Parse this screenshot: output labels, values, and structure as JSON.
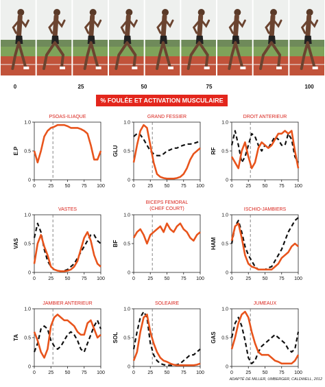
{
  "strip": {
    "ticks": [
      0,
      25,
      50,
      75,
      100
    ]
  },
  "banner": "% FOULÉE ET ACTIVATION MUSCULAIRE",
  "credit": "ADAPTÉ DE MILLER, UMBERGER, CALDWELL, 2012",
  "chart_data": [
    {
      "type": "line",
      "title": "PSOAS-ILIAQUE",
      "ylabel": "E.P",
      "xlim": [
        0,
        100
      ],
      "ylim": [
        0,
        1
      ],
      "xticks": [
        0,
        25,
        50,
        75,
        100
      ],
      "yticks": [
        0,
        0.5,
        {
          "value": 1,
          "label": "1.0"
        }
      ],
      "vline": 28,
      "x": [
        0,
        5,
        10,
        15,
        20,
        25,
        30,
        35,
        40,
        45,
        50,
        55,
        60,
        65,
        70,
        75,
        80,
        85,
        90,
        95,
        100
      ],
      "series": [
        {
          "color": "#e8541c",
          "dash": false,
          "values": [
            0.5,
            0.3,
            0.5,
            0.75,
            0.85,
            0.9,
            0.92,
            0.95,
            0.95,
            0.95,
            0.93,
            0.9,
            0.9,
            0.9,
            0.88,
            0.85,
            0.8,
            0.6,
            0.35,
            0.35,
            0.5
          ]
        }
      ]
    },
    {
      "type": "line",
      "title": "GRAND FESSIER",
      "ylabel": "GLU",
      "xlim": [
        0,
        100
      ],
      "ylim": [
        0,
        1
      ],
      "xticks": [
        0,
        25,
        50,
        75,
        100
      ],
      "yticks": [
        0,
        0.5,
        {
          "value": 1,
          "label": "1.0"
        }
      ],
      "vline": 28,
      "x": [
        0,
        5,
        10,
        15,
        20,
        25,
        30,
        35,
        40,
        45,
        50,
        55,
        60,
        65,
        70,
        75,
        80,
        85,
        90,
        95,
        100
      ],
      "series": [
        {
          "color": "#e8541c",
          "dash": false,
          "values": [
            0.3,
            0.6,
            0.85,
            0.95,
            0.9,
            0.6,
            0.3,
            0.1,
            0.05,
            0.03,
            0.02,
            0.02,
            0.02,
            0.03,
            0.05,
            0.1,
            0.2,
            0.35,
            0.45,
            0.5,
            0.55
          ]
        },
        {
          "color": "#111111",
          "dash": true,
          "values": [
            0.75,
            0.8,
            0.78,
            0.7,
            0.6,
            0.5,
            0.45,
            0.42,
            0.42,
            0.45,
            0.5,
            0.52,
            0.55,
            0.55,
            0.58,
            0.6,
            0.62,
            0.62,
            0.63,
            0.65,
            0.67
          ]
        }
      ]
    },
    {
      "type": "line",
      "title": "DROIT ANTERIEUR",
      "ylabel": "RF",
      "xlim": [
        0,
        100
      ],
      "ylim": [
        0,
        1
      ],
      "xticks": [
        0,
        25,
        50,
        75,
        100
      ],
      "yticks": [
        0,
        0.5,
        {
          "value": 1,
          "label": "1.0"
        }
      ],
      "vline": 28,
      "x": [
        0,
        5,
        10,
        15,
        20,
        25,
        30,
        35,
        40,
        45,
        50,
        55,
        60,
        65,
        70,
        75,
        80,
        85,
        90,
        95,
        100
      ],
      "series": [
        {
          "color": "#e8541c",
          "dash": false,
          "values": [
            0.4,
            0.3,
            0.2,
            0.5,
            0.65,
            0.4,
            0.2,
            0.3,
            0.55,
            0.65,
            0.6,
            0.55,
            0.6,
            0.7,
            0.8,
            0.8,
            0.85,
            0.8,
            0.85,
            0.5,
            0.2
          ]
        },
        {
          "color": "#111111",
          "dash": true,
          "values": [
            0.6,
            0.85,
            0.6,
            0.3,
            0.4,
            0.6,
            0.8,
            0.75,
            0.6,
            0.5,
            0.6,
            0.55,
            0.65,
            0.75,
            0.7,
            0.6,
            0.6,
            0.8,
            0.7,
            0.4,
            0.3
          ]
        }
      ]
    },
    {
      "type": "line",
      "title": "VASTES",
      "ylabel": "VAS",
      "xlim": [
        0,
        100
      ],
      "ylim": [
        0,
        1
      ],
      "xticks": [
        0,
        25,
        50,
        75,
        100
      ],
      "yticks": [
        0,
        0.5,
        {
          "value": 1,
          "label": "1.0"
        }
      ],
      "vline": 28,
      "x": [
        0,
        5,
        10,
        15,
        20,
        25,
        30,
        35,
        40,
        45,
        50,
        55,
        60,
        65,
        70,
        75,
        80,
        85,
        90,
        95,
        100
      ],
      "series": [
        {
          "color": "#e8541c",
          "dash": false,
          "values": [
            0.15,
            0.5,
            0.65,
            0.45,
            0.3,
            0.1,
            0.05,
            0.03,
            0.02,
            0.02,
            0.03,
            0.05,
            0.1,
            0.2,
            0.4,
            0.6,
            0.7,
            0.55,
            0.3,
            0.15,
            0.1
          ]
        },
        {
          "color": "#111111",
          "dash": true,
          "values": [
            0.6,
            0.85,
            0.7,
            0.4,
            0.2,
            0.1,
            0.05,
            0.03,
            0.02,
            0.03,
            0.05,
            0.1,
            0.15,
            0.25,
            0.35,
            0.45,
            0.55,
            0.65,
            0.65,
            0.55,
            0.5
          ]
        }
      ]
    },
    {
      "type": "line",
      "title": "BICEPS FEMORAL",
      "subtitle": "(CHEF COURT)",
      "ylabel": "BF",
      "xlim": [
        0,
        100
      ],
      "ylim": [
        0,
        1
      ],
      "xticks": [
        0,
        25,
        50,
        75,
        100
      ],
      "yticks": [
        0,
        0.5,
        {
          "value": 1,
          "label": "1.0"
        }
      ],
      "vline": 28,
      "x": [
        0,
        5,
        10,
        15,
        20,
        25,
        30,
        35,
        40,
        45,
        50,
        55,
        60,
        65,
        70,
        75,
        80,
        85,
        90,
        95,
        100
      ],
      "series": [
        {
          "color": "#e8541c",
          "dash": false,
          "values": [
            0.6,
            0.7,
            0.75,
            0.65,
            0.5,
            0.65,
            0.7,
            0.75,
            0.8,
            0.7,
            0.85,
            0.75,
            0.7,
            0.8,
            0.85,
            0.75,
            0.7,
            0.6,
            0.55,
            0.65,
            0.7
          ]
        }
      ]
    },
    {
      "type": "line",
      "title": "ISCHIO-JAMBIERS",
      "ylabel": "HAM",
      "xlim": [
        0,
        100
      ],
      "ylim": [
        0,
        1
      ],
      "xticks": [
        0,
        25,
        50,
        75,
        100
      ],
      "yticks": [
        0,
        0.5,
        {
          "value": 1,
          "label": "1.0"
        }
      ],
      "vline": 28,
      "x": [
        0,
        5,
        10,
        15,
        20,
        25,
        30,
        35,
        40,
        45,
        50,
        55,
        60,
        65,
        70,
        75,
        80,
        85,
        90,
        95,
        100
      ],
      "series": [
        {
          "color": "#e8541c",
          "dash": false,
          "values": [
            0.55,
            0.8,
            0.85,
            0.6,
            0.3,
            0.15,
            0.1,
            0.08,
            0.05,
            0.05,
            0.05,
            0.05,
            0.05,
            0.1,
            0.15,
            0.25,
            0.3,
            0.35,
            0.45,
            0.5,
            0.45
          ]
        },
        {
          "color": "#111111",
          "dash": true,
          "values": [
            0.5,
            0.8,
            0.9,
            0.7,
            0.45,
            0.3,
            0.2,
            0.1,
            0.05,
            0.05,
            0.05,
            0.08,
            0.1,
            0.2,
            0.3,
            0.4,
            0.55,
            0.7,
            0.8,
            0.9,
            0.95
          ]
        }
      ]
    },
    {
      "type": "line",
      "title": "JAMBIER ANTERIEUR",
      "ylabel": "TA",
      "xlim": [
        0,
        100
      ],
      "ylim": [
        0,
        1
      ],
      "xticks": [
        0,
        25,
        50,
        75,
        100
      ],
      "yticks": [
        0,
        0.5,
        {
          "value": 1,
          "label": "1.0"
        }
      ],
      "vline": 28,
      "x": [
        0,
        5,
        10,
        15,
        20,
        25,
        30,
        35,
        40,
        45,
        50,
        55,
        60,
        65,
        70,
        75,
        80,
        85,
        90,
        95,
        100
      ],
      "series": [
        {
          "color": "#e8541c",
          "dash": false,
          "values": [
            0.6,
            0.45,
            0.25,
            0.15,
            0.3,
            0.7,
            0.85,
            0.9,
            0.85,
            0.8,
            0.8,
            0.75,
            0.7,
            0.6,
            0.55,
            0.55,
            0.75,
            0.8,
            0.65,
            0.5,
            0.55
          ]
        },
        {
          "color": "#111111",
          "dash": true,
          "values": [
            0.25,
            0.4,
            0.65,
            0.7,
            0.65,
            0.45,
            0.35,
            0.3,
            0.35,
            0.45,
            0.55,
            0.6,
            0.55,
            0.45,
            0.3,
            0.25,
            0.4,
            0.55,
            0.7,
            0.8,
            0.65
          ]
        }
      ]
    },
    {
      "type": "line",
      "title": "SOLEAIRE",
      "ylabel": "SOL",
      "xlim": [
        0,
        100
      ],
      "ylim": [
        0,
        1
      ],
      "xticks": [
        0,
        25,
        50,
        75,
        100
      ],
      "yticks": [
        0,
        0.5,
        {
          "value": 1,
          "label": "1.0"
        }
      ],
      "vline": 28,
      "x": [
        0,
        5,
        10,
        15,
        20,
        25,
        30,
        35,
        40,
        45,
        50,
        55,
        60,
        65,
        70,
        75,
        80,
        85,
        90,
        95,
        100
      ],
      "series": [
        {
          "color": "#e8541c",
          "dash": false,
          "values": [
            0.1,
            0.25,
            0.6,
            0.85,
            0.9,
            0.6,
            0.4,
            0.25,
            0.15,
            0.1,
            0.08,
            0.05,
            0.03,
            0.02,
            0.02,
            0.02,
            0.02,
            0.02,
            0.02,
            0.03,
            0.05
          ]
        },
        {
          "color": "#111111",
          "dash": true,
          "values": [
            0.3,
            0.6,
            0.85,
            0.95,
            0.85,
            0.4,
            0.2,
            0.1,
            0.05,
            0.03,
            0.02,
            0.02,
            0.02,
            0.03,
            0.05,
            0.1,
            0.15,
            0.2,
            0.2,
            0.25,
            0.3
          ]
        }
      ]
    },
    {
      "type": "line",
      "title": "JUMEAUX",
      "ylabel": "GAS",
      "xlim": [
        0,
        100
      ],
      "ylim": [
        0,
        1
      ],
      "xticks": [
        0,
        25,
        50,
        75,
        100
      ],
      "yticks": [
        0,
        0.5,
        {
          "value": 1,
          "label": "1.0"
        }
      ],
      "vline": 28,
      "x": [
        0,
        5,
        10,
        15,
        20,
        25,
        30,
        35,
        40,
        45,
        50,
        55,
        60,
        65,
        70,
        75,
        80,
        85,
        90,
        95,
        100
      ],
      "series": [
        {
          "color": "#e8541c",
          "dash": false,
          "values": [
            0.3,
            0.5,
            0.75,
            0.9,
            0.95,
            0.85,
            0.6,
            0.4,
            0.25,
            0.2,
            0.2,
            0.2,
            0.15,
            0.1,
            0.08,
            0.05,
            0.05,
            0.05,
            0.05,
            0.1,
            0.2
          ]
        },
        {
          "color": "#111111",
          "dash": true,
          "values": [
            0.5,
            0.75,
            0.85,
            0.7,
            0.45,
            0.15,
            0.05,
            0.1,
            0.25,
            0.35,
            0.4,
            0.45,
            0.5,
            0.55,
            0.5,
            0.45,
            0.4,
            0.3,
            0.25,
            0.3,
            0.6
          ]
        }
      ]
    }
  ]
}
